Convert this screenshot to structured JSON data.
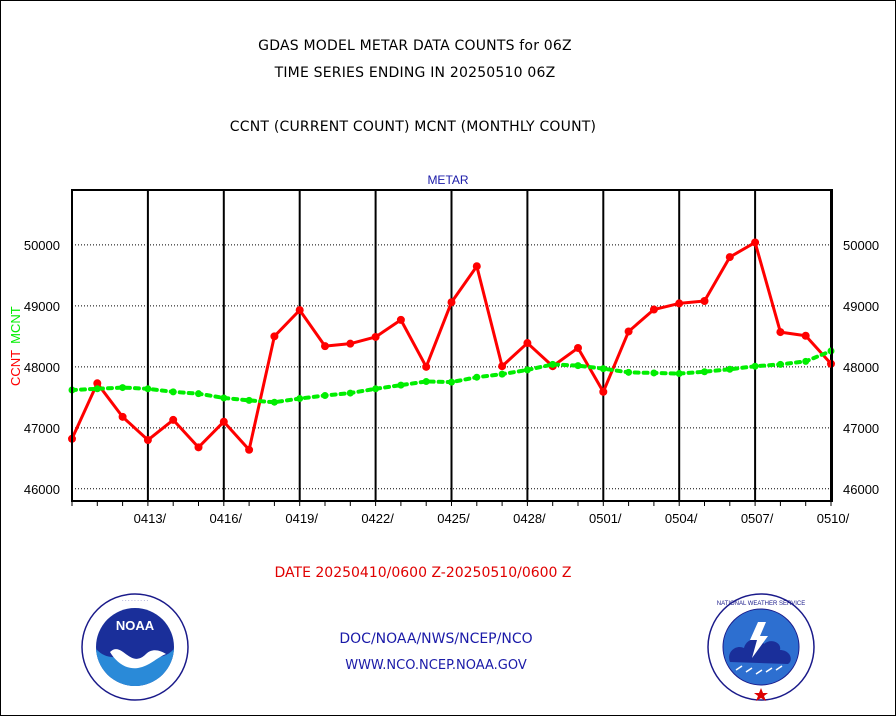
{
  "titles": {
    "line1": "GDAS MODEL METAR DATA COUNTS for 06Z",
    "line2": "TIME SERIES ENDING IN 20250510 06Z",
    "line3": "CCNT (CURRENT COUNT) MCNT (MONTHLY COUNT)"
  },
  "date_range": "DATE 20250410/0600 Z-20250510/0600 Z",
  "footer": {
    "org_path": "DOC/NOAA/NWS/NCEP/NCO",
    "website": "WWW.NCO.NCEP.NOAA.GOV"
  },
  "logos": {
    "left": "NOAA",
    "right": "NATIONAL WEATHER SERVICE"
  },
  "colors": {
    "ccnt": "#ff0000",
    "mcnt": "#00ee00",
    "footer_text": "#1a1aa8",
    "header_label": "#1a1aa8"
  },
  "chart_data": {
    "type": "line",
    "header_label": "METAR",
    "ylabel_left": [
      "CCNT",
      "MCNT"
    ],
    "ylim": [
      45800,
      50900
    ],
    "yticks": [
      46000,
      47000,
      48000,
      49000,
      50000
    ],
    "ytick_labels": [
      "46000",
      "47000",
      "48000",
      "49000",
      "50000"
    ],
    "x": [
      "0410",
      "0411",
      "0412",
      "0413",
      "0414",
      "0415",
      "0416",
      "0417",
      "0418",
      "0419",
      "0420",
      "0421",
      "0422",
      "0423",
      "0424",
      "0425",
      "0426",
      "0427",
      "0428",
      "0429",
      "0430",
      "0501",
      "0502",
      "0503",
      "0504",
      "0505",
      "0506",
      "0507",
      "0508",
      "0509",
      "0510"
    ],
    "xtick_labels": [
      "0413/",
      "0416/",
      "0419/",
      "0422/",
      "0425/",
      "0428/",
      "0501/",
      "0504/",
      "0507/",
      "0510/"
    ],
    "grid": true,
    "series": [
      {
        "name": "CCNT",
        "color": "#ff0000",
        "style": "solid",
        "values": [
          46820,
          47730,
          47180,
          46800,
          47130,
          46680,
          47100,
          46640,
          48500,
          48930,
          48340,
          48380,
          48490,
          48770,
          48000,
          49060,
          49650,
          48010,
          48390,
          48010,
          48310,
          47590,
          48580,
          48940,
          49040,
          49080,
          49800,
          50040,
          48570,
          48510,
          48050
        ]
      },
      {
        "name": "MCNT",
        "color": "#00ee00",
        "style": "dotted",
        "values": [
          47620,
          47640,
          47660,
          47640,
          47590,
          47560,
          47490,
          47450,
          47420,
          47480,
          47530,
          47570,
          47640,
          47700,
          47760,
          47750,
          47830,
          47880,
          47950,
          48040,
          48020,
          47970,
          47910,
          47900,
          47890,
          47920,
          47960,
          48010,
          48040,
          48090,
          48260
        ]
      }
    ]
  }
}
